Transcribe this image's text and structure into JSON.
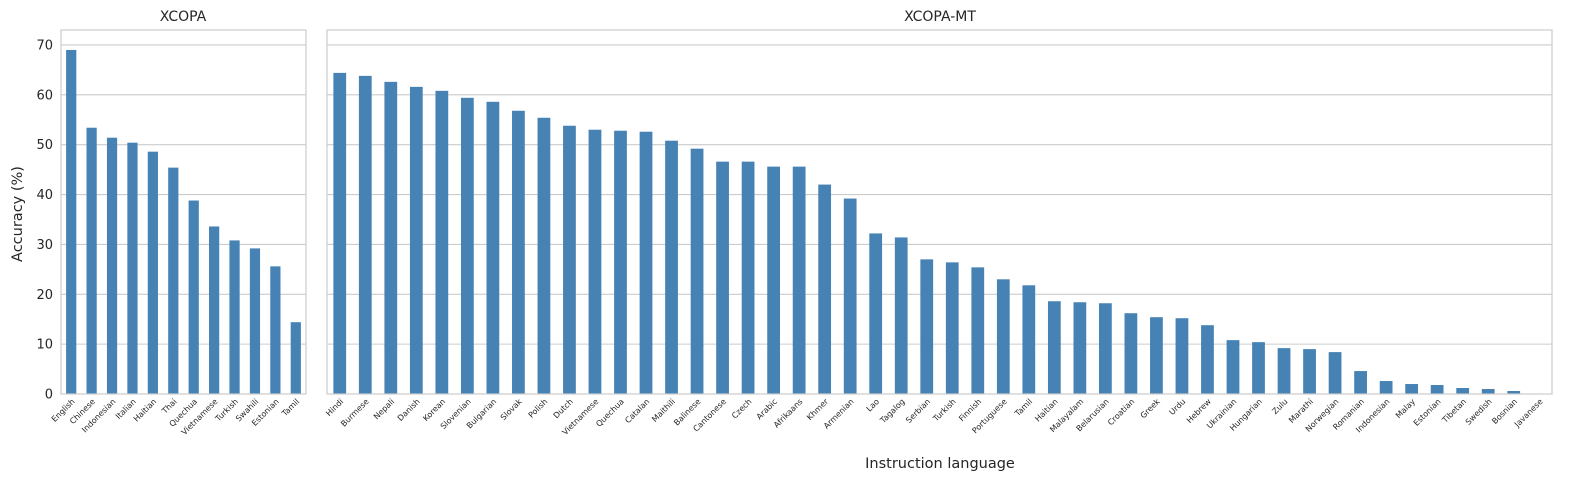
{
  "chart_data": [
    {
      "type": "bar",
      "title": "XCOPA",
      "xlabel": "",
      "ylabel": "Accuracy (%)",
      "ylim": [
        0,
        73
      ],
      "yticks": [
        0,
        10,
        20,
        30,
        40,
        50,
        60,
        70
      ],
      "grid": "horizontal",
      "bar_color": "#4682b4",
      "categories": [
        "English",
        "Chinese",
        "Indonesian",
        "Italian",
        "Haitian",
        "Thai",
        "Quechua",
        "Vietnamese",
        "Turkish",
        "Swahili",
        "Estonian",
        "Tamil"
      ],
      "values": [
        69.0,
        53.4,
        51.4,
        50.4,
        48.6,
        45.4,
        38.8,
        33.6,
        30.8,
        29.2,
        25.6,
        14.4
      ]
    },
    {
      "type": "bar",
      "title": "XCOPA-MT",
      "xlabel": "Instruction language",
      "ylabel": "",
      "ylim": [
        0,
        73
      ],
      "yticks": [
        0,
        10,
        20,
        30,
        40,
        50,
        60,
        70
      ],
      "grid": "horizontal",
      "bar_color": "#4682b4",
      "categories": [
        "Hindi",
        "Burmese",
        "Nepali",
        "Danish",
        "Korean",
        "Slovenian",
        "Bulgarian",
        "Slovak",
        "Polish",
        "Dutch",
        "Vietnamese",
        "Quechua",
        "Catalan",
        "Maithili",
        "Balinese",
        "Cantonese",
        "Czech",
        "Arabic",
        "Afrikaans",
        "Khmer",
        "Armenian",
        "Lao",
        "Tagalog",
        "Serbian",
        "Turkish",
        "Finnish",
        "Portuguese",
        "Tamil",
        "Haitian",
        "Malayalam",
        "Belarusian",
        "Croatian",
        "Greek",
        "Urdu",
        "Hebrew",
        "Ukrainian",
        "Hungarian",
        "Zulu",
        "Marathi",
        "Norwegian",
        "Romanian",
        "Indonesian",
        "Malay",
        "Estonian",
        "Tibetan",
        "Swedish",
        "Bosnian",
        "Javanese"
      ],
      "values": [
        64.4,
        63.8,
        62.6,
        61.6,
        60.8,
        59.4,
        58.6,
        56.8,
        55.4,
        53.8,
        53.0,
        52.8,
        52.6,
        50.8,
        49.2,
        46.6,
        46.6,
        45.6,
        45.6,
        42.0,
        39.2,
        32.2,
        31.4,
        27.0,
        26.4,
        25.4,
        23.0,
        21.8,
        18.6,
        18.4,
        18.2,
        16.2,
        15.4,
        15.2,
        13.8,
        10.8,
        10.4,
        9.2,
        9.0,
        8.4,
        4.6,
        2.6,
        2.0,
        1.8,
        1.2,
        1.0,
        0.6,
        0.0
      ]
    }
  ]
}
